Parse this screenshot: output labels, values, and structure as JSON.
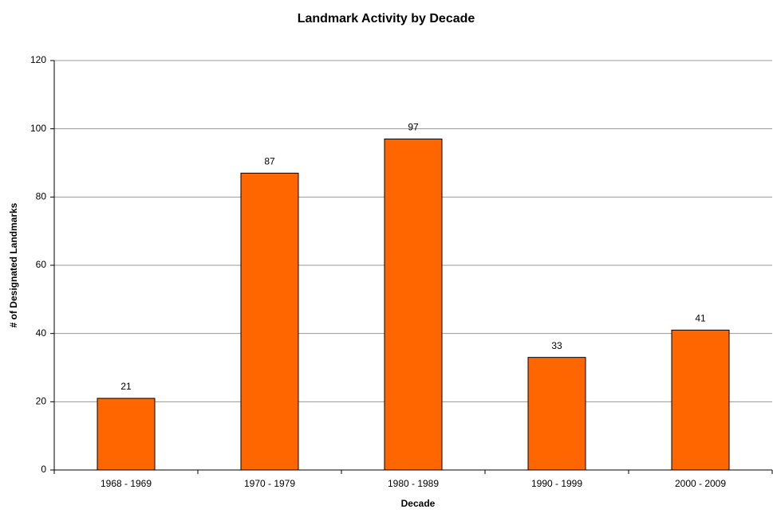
{
  "chart_data": {
    "type": "bar",
    "title": "Landmark Activity by Decade",
    "x_label": "Decade",
    "y_label": "# of Designated Landmarks",
    "categories": [
      "1968 - 1969",
      "1970 - 1979",
      "1980 - 1989",
      "1990 - 1999",
      "2000 - 2009"
    ],
    "values": [
      21,
      87,
      97,
      33,
      41
    ],
    "color": "#ff6600",
    "ylim": [
      0,
      120
    ],
    "yticks": [
      0,
      20,
      40,
      60,
      80,
      100,
      120
    ],
    "grid": true
  }
}
